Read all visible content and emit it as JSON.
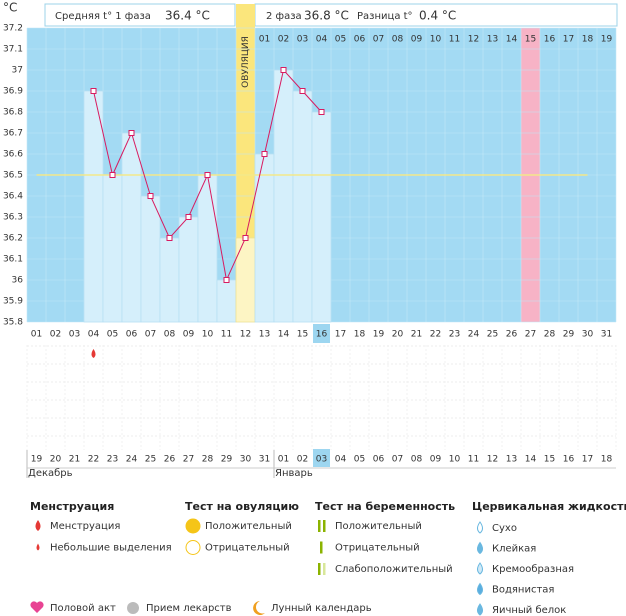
{
  "chart_data": {
    "type": "line",
    "y_unit": "°C",
    "phase1_label": "Средняя t° 1 фаза",
    "phase1_value": "36.4 °C",
    "phase2_label": "2 фаза",
    "phase2_value": "36.8 °C",
    "diff_label": "Разница t°",
    "diff_value": "0.4 °C",
    "ovulation_label": "ОВУЛЯЦИЯ",
    "ovulation_category": "12",
    "highlight_category": "27",
    "today_category": "16",
    "menstruation_category": "04",
    "coverline": 36.5,
    "categories": [
      "01",
      "02",
      "03",
      "04",
      "05",
      "06",
      "07",
      "08",
      "09",
      "10",
      "11",
      "12",
      "13",
      "14",
      "15",
      "16",
      "17",
      "18",
      "19",
      "20",
      "21",
      "22",
      "23",
      "24",
      "25",
      "26",
      "27",
      "28",
      "29",
      "30",
      "31"
    ],
    "values": [
      null,
      null,
      null,
      36.9,
      36.5,
      36.7,
      36.4,
      36.2,
      36.3,
      36.5,
      36.0,
      36.2,
      36.6,
      37.0,
      36.9,
      36.8,
      null,
      null,
      null,
      null,
      null,
      null,
      null,
      null,
      null,
      null,
      null,
      null,
      null,
      null,
      null
    ],
    "phase2_days": [
      "01",
      "02",
      "03",
      "04",
      "05",
      "06",
      "07",
      "08",
      "09",
      "10",
      "11",
      "12",
      "13",
      "14",
      "15",
      "16",
      "17",
      "18",
      "19"
    ],
    "ylim": [
      35.8,
      37.2
    ],
    "yticks": [
      35.8,
      35.9,
      36,
      36.1,
      36.2,
      36.3,
      36.4,
      36.5,
      36.6,
      36.7,
      36.8,
      36.9,
      37,
      37.1,
      37.2
    ],
    "line_color": "#d81b60",
    "calendar": [
      {
        "label": "19",
        "weekend": false
      },
      {
        "label": "20",
        "weekend": true
      },
      {
        "label": "21",
        "weekend": true
      },
      {
        "label": "22",
        "weekend": false
      },
      {
        "label": "23",
        "weekend": false
      },
      {
        "label": "24",
        "weekend": false
      },
      {
        "label": "25",
        "weekend": false
      },
      {
        "label": "26",
        "weekend": false
      },
      {
        "label": "27",
        "weekend": true
      },
      {
        "label": "28",
        "weekend": true
      },
      {
        "label": "29",
        "weekend": false
      },
      {
        "label": "30",
        "weekend": false
      },
      {
        "label": "31",
        "weekend": false
      },
      {
        "label": "01",
        "weekend": false
      },
      {
        "label": "02",
        "weekend": false
      },
      {
        "label": "03",
        "weekend": false
      },
      {
        "label": "04",
        "weekend": true
      },
      {
        "label": "05",
        "weekend": false
      },
      {
        "label": "06",
        "weekend": false
      },
      {
        "label": "07",
        "weekend": false
      },
      {
        "label": "08",
        "weekend": false
      },
      {
        "label": "09",
        "weekend": false
      },
      {
        "label": "10",
        "weekend": true
      },
      {
        "label": "11",
        "weekend": true
      },
      {
        "label": "12",
        "weekend": false
      },
      {
        "label": "13",
        "weekend": false
      },
      {
        "label": "14",
        "weekend": false
      },
      {
        "label": "15",
        "weekend": false
      },
      {
        "label": "16",
        "weekend": false
      },
      {
        "label": "17",
        "weekend": true
      },
      {
        "label": "18",
        "weekend": true
      }
    ],
    "months": [
      "Декабрь",
      "Январь"
    ],
    "legend_groups": [
      {
        "title": "Менструация",
        "items": [
          "Менструация",
          "Небольшие выделения"
        ]
      },
      {
        "title": "Тест на овуляцию",
        "items": [
          "Положительный",
          "Отрицательный"
        ]
      },
      {
        "title": "Тест на беременность",
        "items": [
          "Положительный",
          "Отрицательный",
          "Слабоположительный"
        ]
      },
      {
        "title": "Цервикальная жидкость",
        "items": [
          "Сухо",
          "Клейкая",
          "Кремообразная",
          "Водянистая",
          "Яичный белок"
        ]
      }
    ],
    "extra_legend": [
      "Половой акт",
      "Прием лекарств",
      "Лунный календарь"
    ]
  }
}
